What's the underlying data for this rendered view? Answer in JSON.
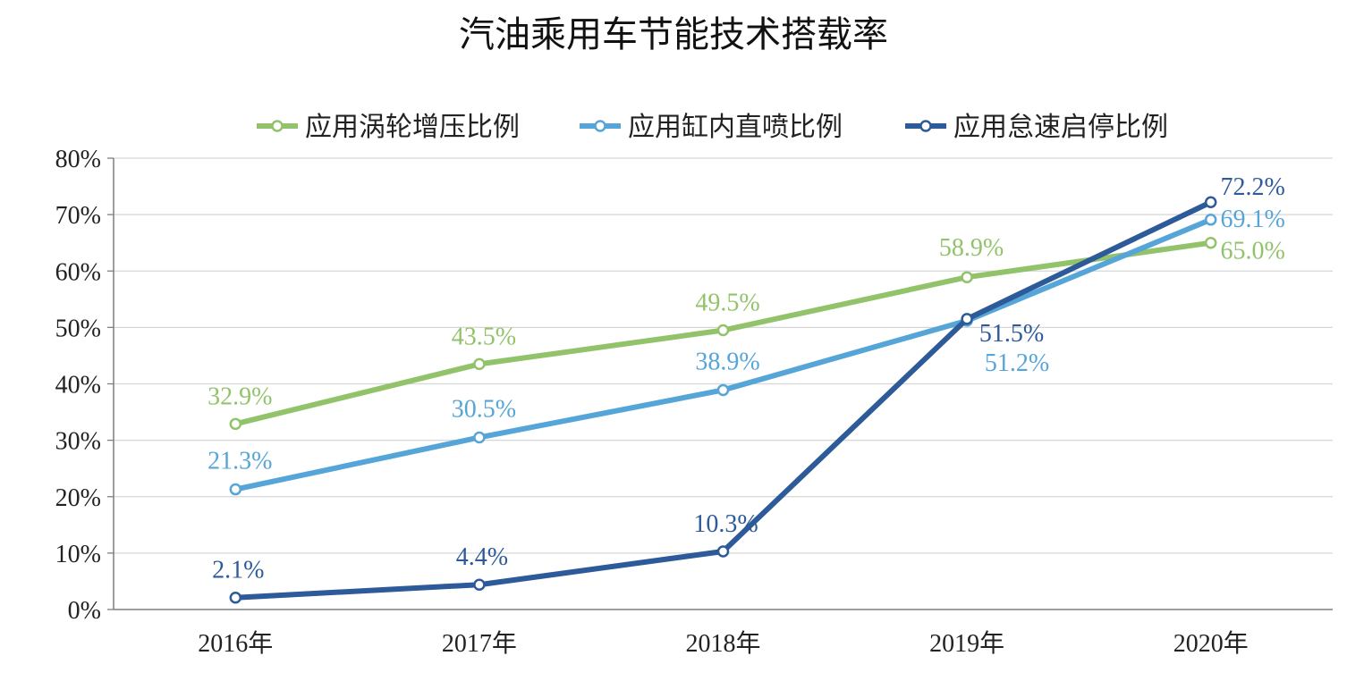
{
  "chart_data": {
    "type": "line",
    "title": "汽油乘用车节能技术搭载率",
    "categories": [
      "2016年",
      "2017年",
      "2018年",
      "2019年",
      "2020年"
    ],
    "ylim": [
      0,
      80
    ],
    "yticks": [
      "0%",
      "10%",
      "20%",
      "30%",
      "40%",
      "50%",
      "60%",
      "70%",
      "80%"
    ],
    "grid": true,
    "legend_position": "top",
    "series": [
      {
        "name": "应用涡轮增压比例",
        "values": [
          32.9,
          43.5,
          49.5,
          58.9,
          65.0
        ],
        "labels": [
          "32.9%",
          "43.5%",
          "49.5%",
          "58.9%",
          "65.0%"
        ],
        "color": "#92c36b"
      },
      {
        "name": "应用缸内直喷比例",
        "values": [
          21.3,
          30.5,
          38.9,
          51.2,
          69.1
        ],
        "labels": [
          "21.3%",
          "30.5%",
          "38.9%",
          "51.2%",
          "69.1%"
        ],
        "color": "#56a5d8"
      },
      {
        "name": "应用怠速启停比例",
        "values": [
          2.1,
          4.4,
          10.3,
          51.5,
          72.2
        ],
        "labels": [
          "2.1%",
          "4.4%",
          "10.3%",
          "51.5%",
          "72.2%"
        ],
        "color": "#2d5a98"
      }
    ]
  }
}
